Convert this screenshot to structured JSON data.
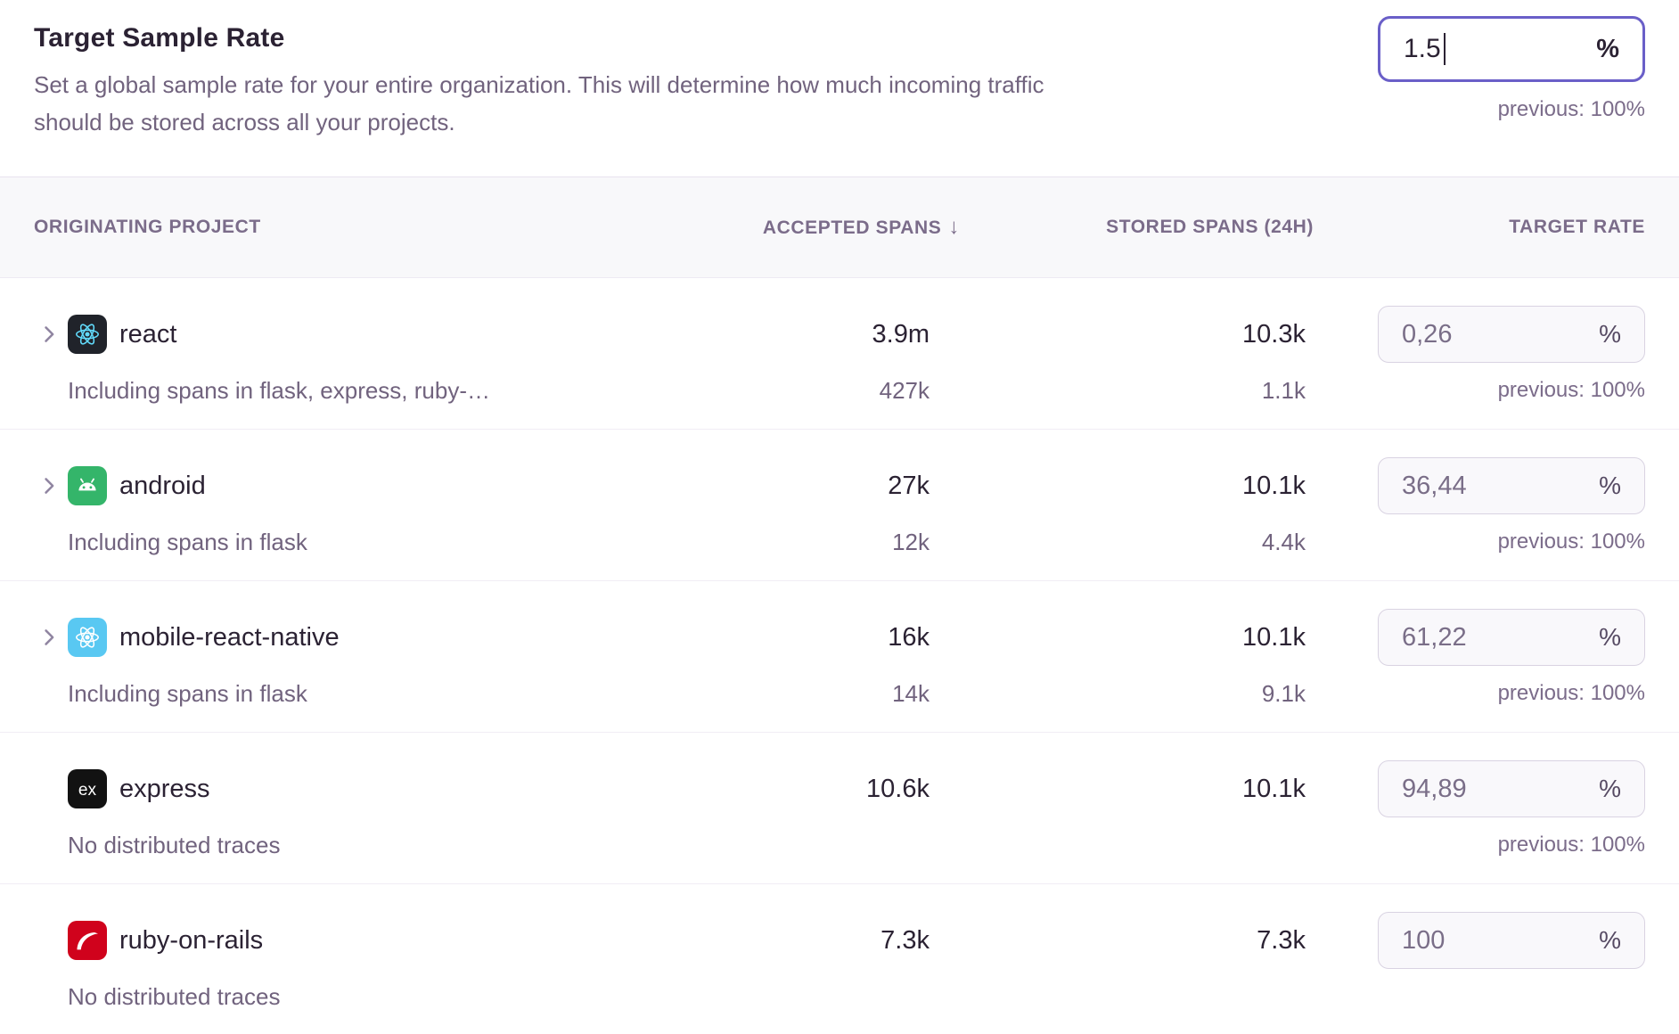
{
  "header": {
    "title": "Target Sample Rate",
    "description": "Set a global sample rate for your entire organization. This will determine how much incoming traffic should be stored across all your projects.",
    "input": {
      "value": "1.5",
      "unit": "%",
      "previous": "previous: 100%"
    }
  },
  "table": {
    "columns": [
      {
        "label": "ORIGINATING PROJECT"
      },
      {
        "label": "ACCEPTED SPANS",
        "sort_icon": "↓"
      },
      {
        "label": "STORED SPANS (24H)"
      },
      {
        "label": "TARGET RATE"
      }
    ],
    "rows": [
      {
        "name": "react",
        "icon": "react",
        "icon_bg": "#20232a",
        "expandable": true,
        "accepted": "3.9m",
        "stored": "10.3k",
        "rate": "0,26",
        "unit": "%",
        "previous": "previous: 100%",
        "sub_label": "Including spans in flask, express, ruby-…",
        "sub_accepted": "427k",
        "sub_stored": "1.1k"
      },
      {
        "name": "android",
        "icon": "android",
        "icon_bg": "#34b56a",
        "expandable": true,
        "accepted": "27k",
        "stored": "10.1k",
        "rate": "36,44",
        "unit": "%",
        "previous": "previous: 100%",
        "sub_label": "Including spans in flask",
        "sub_accepted": "12k",
        "sub_stored": "4.4k"
      },
      {
        "name": "mobile-react-native",
        "icon": "react-native",
        "icon_bg": "#59c8f2",
        "expandable": true,
        "accepted": "16k",
        "stored": "10.1k",
        "rate": "61,22",
        "unit": "%",
        "previous": "previous: 100%",
        "sub_label": "Including spans in flask",
        "sub_accepted": "14k",
        "sub_stored": "9.1k"
      },
      {
        "name": "express",
        "icon": "express",
        "icon_bg": "#121212",
        "expandable": false,
        "accepted": "10.6k",
        "stored": "10.1k",
        "rate": "94,89",
        "unit": "%",
        "previous": "previous: 100%",
        "sub_label": "No distributed traces"
      },
      {
        "name": "ruby-on-rails",
        "icon": "rails",
        "icon_bg": "#d0021c",
        "expandable": false,
        "accepted": "7.3k",
        "stored": "7.3k",
        "rate": "100",
        "unit": "%",
        "sub_label": "No distributed traces"
      }
    ]
  },
  "colors": {
    "accent_focus": "#6a5fc8",
    "title_text": "#2b2233",
    "muted_text": "#71637e",
    "header_bg": "#f8f8fa",
    "divider": "#f1edf5"
  }
}
